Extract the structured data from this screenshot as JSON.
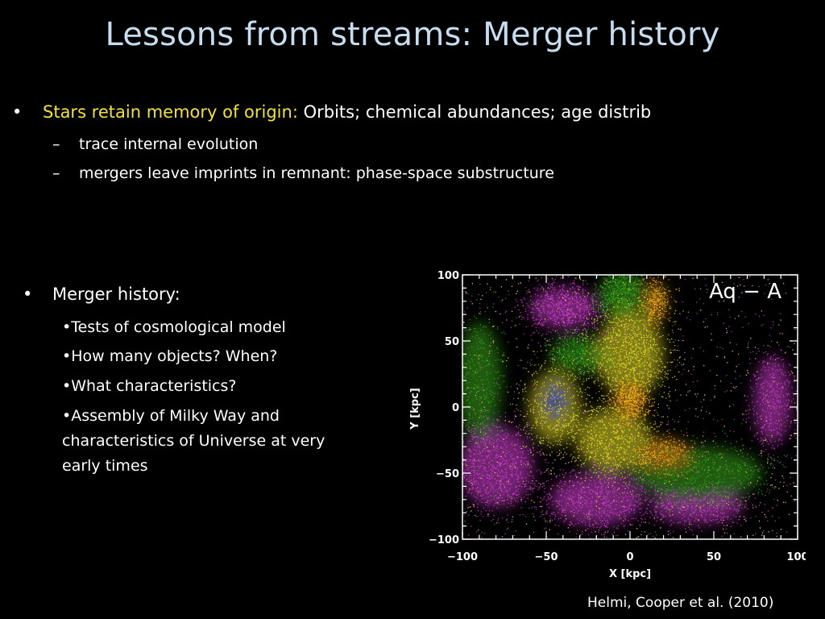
{
  "title": "Lessons from streams: Merger history",
  "bullet1": {
    "marker": "•",
    "highlight": "Stars retain memory of origin:",
    "rest": " Orbits; chemical abundances; age distrib",
    "subitems": [
      {
        "marker": "–",
        "text": "trace internal evolution"
      },
      {
        "marker": "–",
        "text": "mergers leave imprints in remnant: phase-space substructure"
      }
    ]
  },
  "bullet2": {
    "marker": "•",
    "label": "Merger history:",
    "items": [
      "•Tests of cosmological model",
      "•How many objects? When?",
      "•What characteristics?",
      "•Assembly of Milky Way and characteristics of Universe at very early times"
    ]
  },
  "plot": {
    "panel_label": "Aq − A",
    "xlabel": "X [kpc]",
    "ylabel": "Y [kpc]",
    "xlim": [
      -100,
      100
    ],
    "ylim": [
      -100,
      100
    ],
    "xticks": [
      "−100",
      "−50",
      "0",
      "50",
      "100"
    ],
    "yticks": [
      "100",
      "50",
      "0",
      "−50",
      "−100"
    ],
    "colors": {
      "magenta": "#d23fd0",
      "green": "#3aa61c",
      "yellow": "#e9e12a",
      "orange": "#f2a51a",
      "blue": "#4a5ad8",
      "dark_orange": "#ff7a1a"
    }
  },
  "citation": "Helmi, Cooper et al. (2010)"
}
